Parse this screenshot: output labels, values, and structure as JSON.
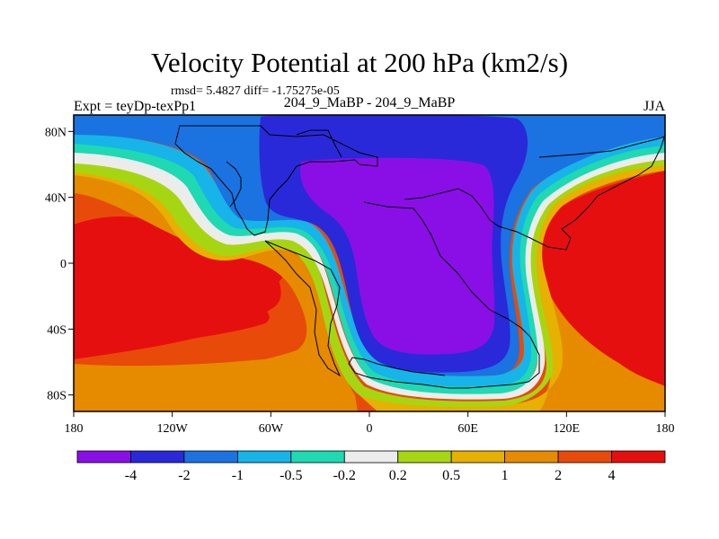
{
  "header": {
    "title": "Velocity Potential at 200 hPa (km2/s)",
    "stats": "rmsd= 5.4827 diff= -1.75275e-05",
    "experiment": "Expt = teyDp-texPp1",
    "cases": "204_9_MaBP - 204_9_MaBP",
    "season": "JJA"
  },
  "chart_data": {
    "type": "heatmap",
    "title": "Velocity Potential at 200 hPa (km2/s)",
    "subtitle": "204_9_MaBP - 204_9_MaBP",
    "xlabel": "",
    "ylabel": "",
    "xlim": [
      -180,
      180
    ],
    "ylim": [
      -90,
      90
    ],
    "x_ticks": [
      {
        "value": -180,
        "label": "180"
      },
      {
        "value": -120,
        "label": "120W"
      },
      {
        "value": -60,
        "label": "60W"
      },
      {
        "value": 0,
        "label": "0"
      },
      {
        "value": 60,
        "label": "60E"
      },
      {
        "value": 120,
        "label": "120E"
      },
      {
        "value": 180,
        "label": "180"
      }
    ],
    "y_ticks": [
      {
        "value": 80,
        "label": "80N"
      },
      {
        "value": 40,
        "label": "40N"
      },
      {
        "value": 0,
        "label": "0"
      },
      {
        "value": -40,
        "label": "40S"
      },
      {
        "value": -80,
        "label": "80S"
      }
    ],
    "contour_levels": [
      -4,
      -2,
      -1,
      -0.5,
      -0.2,
      0.2,
      0.5,
      1,
      2,
      4
    ],
    "colorbar": {
      "labels": [
        "-4",
        "-2",
        "-1",
        "-0.5",
        "-0.2",
        "0.2",
        "0.5",
        "1",
        "2",
        "4"
      ],
      "colors": [
        "#8a0fe6",
        "#2929d9",
        "#1a73e0",
        "#16b4e8",
        "#1fd9b3",
        "#ececec",
        "#a6d612",
        "#e6b100",
        "#e68a00",
        "#e84a0a",
        "#e60f0f"
      ]
    },
    "field": {
      "description_levels_by_region": [
        {
          "region": "Eastern Hemisphere high-latitude centre (Asia/Africa)",
          "min_level_band": "< -4"
        },
        {
          "region": "Western Pacific / Americas",
          "max_level_band": "> 4"
        }
      ]
    }
  }
}
